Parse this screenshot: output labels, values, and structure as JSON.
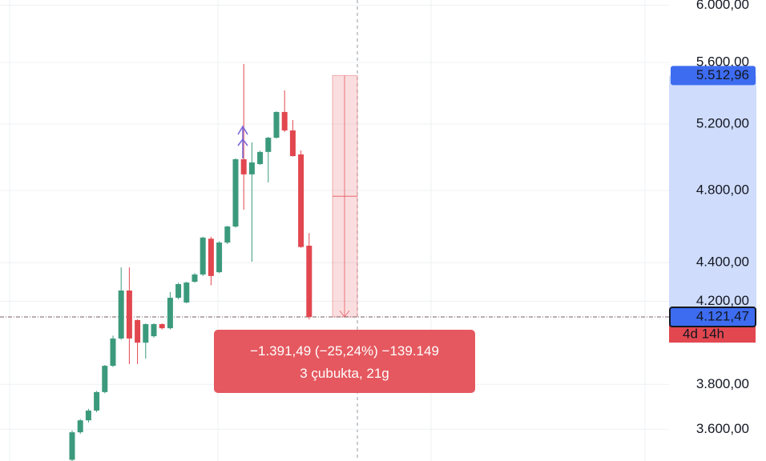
{
  "chart_data": {
    "type": "candlestick",
    "y_scale": "log",
    "ylim": [
      3465,
      6038
    ],
    "yticks": [
      {
        "value": 6000,
        "label": "6.000,00"
      },
      {
        "value": 5600,
        "label": "5.600,00"
      },
      {
        "value": 5200,
        "label": "5.200,00"
      },
      {
        "value": 4800,
        "label": "4.800,00"
      },
      {
        "value": 4400,
        "label": "4.400,00"
      },
      {
        "value": 4200,
        "label": "4.200,00"
      },
      {
        "value": 3800,
        "label": "3.800,00"
      },
      {
        "value": 3600,
        "label": "3.600,00"
      }
    ],
    "grid": true,
    "up_color": "#3c9a7c",
    "down_color": "#e2474f",
    "open": [
      3470,
      3587,
      3639,
      3682,
      3765,
      3886,
      4016,
      4255,
      4106,
      3996,
      4027,
      4086,
      4066,
      4218,
      4194,
      4300,
      4338,
      4529,
      4350,
      4508,
      4596,
      4984,
      4894,
      4955,
      5028,
      5115,
      5276,
      5160,
      5013,
      4491
    ],
    "high": [
      3595,
      3645,
      3690,
      3770,
      3890,
      4030,
      4375,
      4375,
      4110,
      4090,
      4090,
      4090,
      4247,
      4295,
      4300,
      4345,
      4540,
      4540,
      4515,
      4600,
      4990,
      5590,
      5086,
      5035,
      5120,
      5280,
      5415,
      5225,
      5037,
      4560
    ],
    "low": [
      3465,
      3580,
      3630,
      3675,
      3760,
      3880,
      4010,
      3894,
      3894,
      3920,
      4020,
      4060,
      4060,
      4210,
      4190,
      4295,
      4330,
      4282,
      4345,
      4500,
      4590,
      4690,
      4405,
      4950,
      4847,
      5110,
      5150,
      5000,
      4480,
      4110
    ],
    "close": [
      3587,
      3639,
      3682,
      3765,
      3886,
      4016,
      4255,
      4016,
      3996,
      4086,
      4086,
      4066,
      4218,
      4288,
      4296,
      4338,
      4535,
      4330,
      4508,
      4596,
      4984,
      4894,
      4965,
      5028,
      5115,
      5276,
      5160,
      5003,
      4484,
      4121.47
    ],
    "measure": {
      "high": {
        "value": 5512.96,
        "label": "5.512,96"
      },
      "low": {
        "value": 4121.47,
        "label": "4.121,47"
      },
      "countdown": "4d 14h",
      "tooltip": [
        "−1.391,49 (−25,24%) −139.149",
        "3 çubukta, 21g"
      ]
    }
  }
}
